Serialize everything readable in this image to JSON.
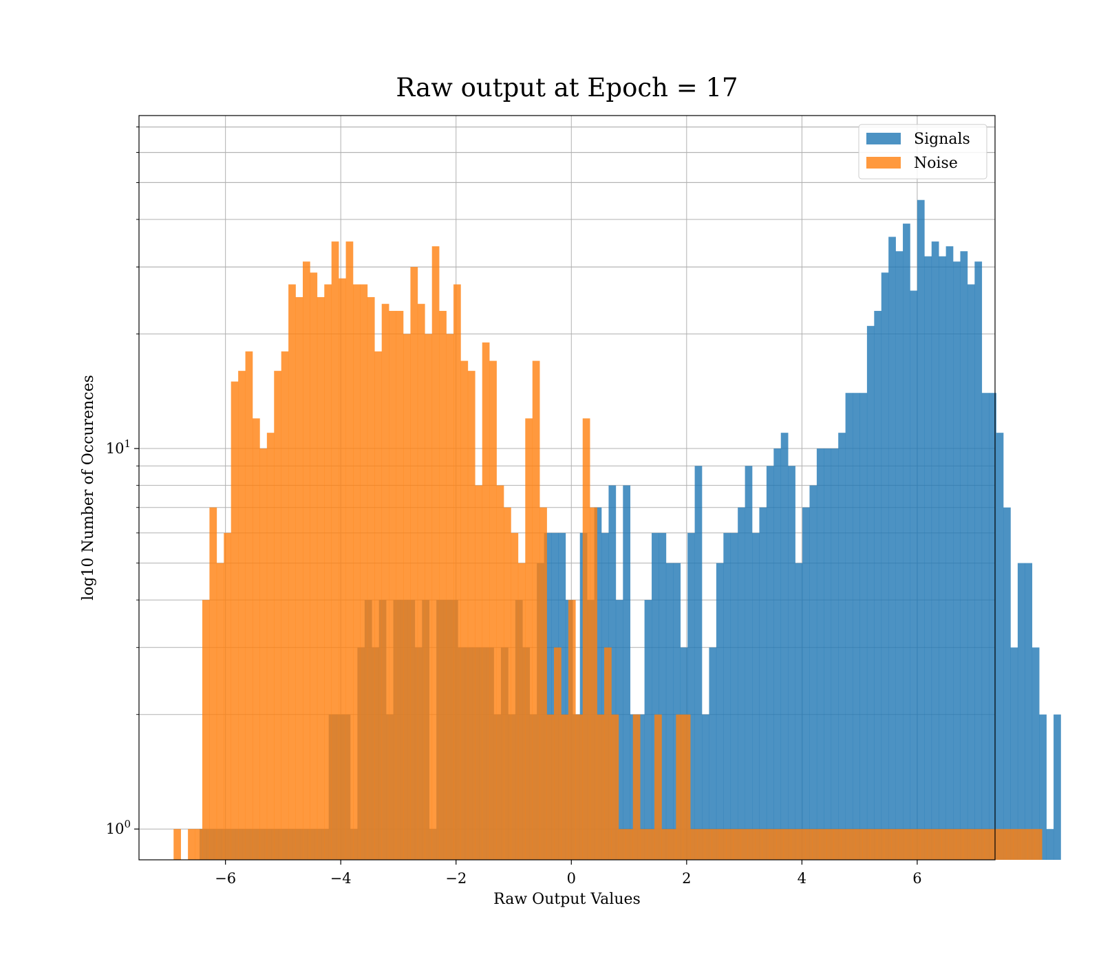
{
  "chart_data": {
    "type": "histogram",
    "title": "Raw output at Epoch = 17",
    "xlabel": "Raw Output Values",
    "ylabel": "log10 Number of Occurences",
    "xlim": [
      -7.5,
      7.35
    ],
    "ylim": [
      0.83,
      75
    ],
    "yscale": "log",
    "grid": true,
    "legend_position": "top-right",
    "xticks": [
      {
        "value": -6,
        "label": "−6"
      },
      {
        "value": -4,
        "label": "−4"
      },
      {
        "value": -2,
        "label": "−2"
      },
      {
        "value": 0,
        "label": "0"
      },
      {
        "value": 2,
        "label": "2"
      },
      {
        "value": 4,
        "label": "4"
      },
      {
        "value": 6,
        "label": "6"
      }
    ],
    "yticks": [
      {
        "value": 1,
        "base": "10",
        "exp": "0"
      },
      {
        "value": 10,
        "base": "10",
        "exp": "1"
      }
    ],
    "series": [
      {
        "name": "Signals",
        "color": "#1f77b4",
        "bin_start": -6.45,
        "bin_width": 0.1245,
        "counts": [
          1,
          1,
          1,
          1,
          1,
          1,
          1,
          1,
          1,
          1,
          1,
          1,
          1,
          1,
          1,
          1,
          1,
          1,
          2,
          2,
          2,
          1,
          3,
          4,
          3,
          4,
          2,
          4,
          4,
          4,
          3,
          4,
          1,
          4,
          4,
          4,
          3,
          3,
          3,
          3,
          3,
          2,
          3,
          2,
          4,
          3,
          2,
          5,
          6,
          6,
          6,
          4,
          2,
          6,
          4,
          7,
          6,
          8,
          4,
          8,
          2,
          2,
          4,
          6,
          6,
          5,
          5,
          3,
          6,
          9,
          2,
          3,
          5,
          6,
          6,
          7,
          9,
          6,
          7,
          9,
          10,
          11,
          9,
          5,
          7,
          8,
          10,
          10,
          10,
          11,
          14,
          14,
          14,
          21,
          23,
          29,
          36,
          33,
          39,
          26,
          45,
          32,
          35,
          32,
          34,
          31,
          33,
          27,
          31,
          14,
          14,
          11,
          7,
          3,
          5,
          5,
          3,
          2,
          1,
          2
        ]
      },
      {
        "name": "Noise",
        "color": "#ff7f0e",
        "bin_start": -6.9,
        "bin_width": 0.1245,
        "counts": [
          1,
          0,
          1,
          1,
          4,
          7,
          5,
          6,
          15,
          16,
          18,
          12,
          10,
          11,
          16,
          18,
          27,
          25,
          31,
          29,
          25,
          27,
          35,
          28,
          35,
          27,
          27,
          25,
          18,
          24,
          23,
          23,
          20,
          30,
          24,
          20,
          34,
          23,
          20,
          27,
          17,
          16,
          8,
          19,
          17,
          8,
          7,
          6,
          5,
          12,
          17,
          7,
          2,
          3,
          2,
          4,
          2,
          12,
          7,
          2,
          3,
          2,
          1,
          1,
          2,
          1,
          1,
          2,
          1,
          1,
          2,
          2,
          1,
          1,
          1,
          1,
          1,
          1,
          1,
          1,
          1,
          1,
          1,
          1,
          1,
          1,
          1,
          1,
          1,
          1,
          1,
          1,
          1,
          1,
          1,
          1,
          1,
          1,
          1,
          1,
          1,
          1,
          1,
          1,
          1,
          1,
          1,
          1,
          1,
          1,
          1,
          1,
          1,
          1,
          1,
          1,
          1,
          1,
          1,
          1,
          1
        ]
      }
    ]
  }
}
